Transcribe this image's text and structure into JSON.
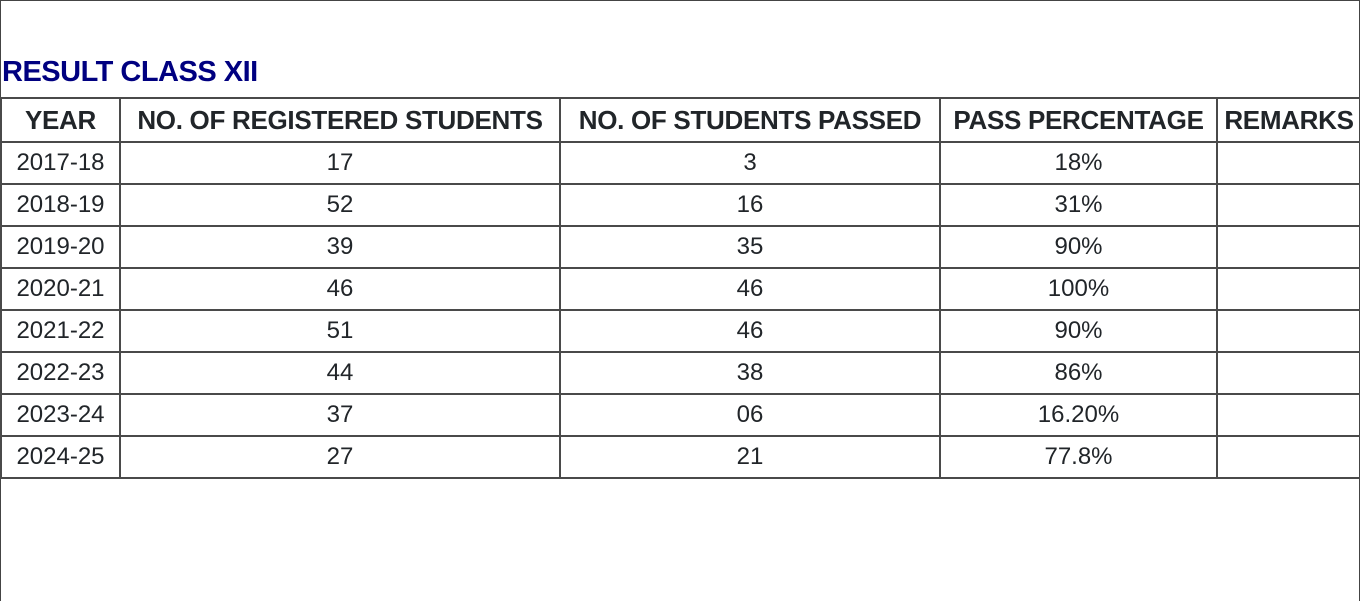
{
  "title": "RESULT CLASS XII",
  "headers": [
    "YEAR",
    "NO. OF REGISTERED STUDENTS",
    "NO. OF STUDENTS PASSED",
    "PASS PERCENTAGE",
    "REMARKS"
  ],
  "rows": [
    {
      "year": "2017-18",
      "registered": "17",
      "passed": "3",
      "percentage": "18%",
      "remarks": ""
    },
    {
      "year": "2018-19",
      "registered": "52",
      "passed": "16",
      "percentage": "31%",
      "remarks": ""
    },
    {
      "year": "2019-20",
      "registered": "39",
      "passed": "35",
      "percentage": "90%",
      "remarks": ""
    },
    {
      "year": "2020-21",
      "registered": "46",
      "passed": "46",
      "percentage": "100%",
      "remarks": ""
    },
    {
      "year": "2021-22",
      "registered": "51",
      "passed": "46",
      "percentage": "90%",
      "remarks": ""
    },
    {
      "year": "2022-23",
      "registered": "44",
      "passed": "38",
      "percentage": "86%",
      "remarks": ""
    },
    {
      "year": "2023-24",
      "registered": "37",
      "passed": "06",
      "percentage": "16.20%",
      "remarks": ""
    },
    {
      "year": "2024-25",
      "registered": "27",
      "passed": "21",
      "percentage": "77.8%",
      "remarks": ""
    }
  ]
}
